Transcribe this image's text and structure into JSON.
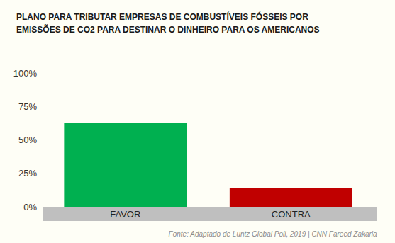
{
  "chart_data": {
    "type": "bar",
    "title": "PLANO PARA TRIBUTAR EMPRESAS DE COMBUSTÍVEIS FÓSSEIS POR\nEMISSÕES DE CO2 PARA DESTINAR O DINHEIRO PARA OS AMERICANOS",
    "categories": [
      "FAVOR",
      "CONTRA"
    ],
    "values": [
      63,
      14
    ],
    "colors": [
      "#00b050",
      "#c00000"
    ],
    "ylim": [
      0,
      100
    ],
    "yticks": [
      {
        "value": 0,
        "label": "0%"
      },
      {
        "value": 25,
        "label": "25%"
      },
      {
        "value": 50,
        "label": "50%"
      },
      {
        "value": 75,
        "label": "75%"
      },
      {
        "value": 100,
        "label": "100%"
      }
    ],
    "grid": false,
    "source": "Fonte: Adaptado de Luntz Global Poll, 2019 | CNN Fareed Zakaria"
  }
}
